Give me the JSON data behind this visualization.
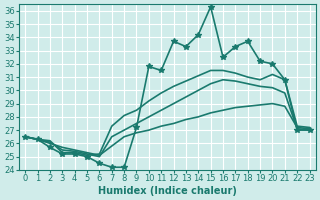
{
  "xlabel": "Humidex (Indice chaleur)",
  "ylabel": "",
  "xlim": [
    -0.5,
    23.5
  ],
  "ylim": [
    24,
    36.5
  ],
  "yticks": [
    24,
    25,
    26,
    27,
    28,
    29,
    30,
    31,
    32,
    33,
    34,
    35,
    36
  ],
  "xticks": [
    0,
    1,
    2,
    3,
    4,
    5,
    6,
    7,
    8,
    9,
    10,
    11,
    12,
    13,
    14,
    15,
    16,
    17,
    18,
    19,
    20,
    21,
    22,
    23
  ],
  "bg_color": "#d0ecea",
  "grid_color": "#ffffff",
  "line_color": "#1a7a6e",
  "lines": [
    {
      "x": [
        0,
        1,
        2,
        3,
        4,
        5,
        6,
        7,
        8,
        9,
        10,
        11,
        12,
        13,
        14,
        15,
        16,
        17,
        18,
        19,
        20,
        21,
        22,
        23
      ],
      "y": [
        26.5,
        26.3,
        25.7,
        25.2,
        25.2,
        25.0,
        24.5,
        24.2,
        24.2,
        27.2,
        31.8,
        31.5,
        33.7,
        33.3,
        34.2,
        36.3,
        32.5,
        33.3,
        33.7,
        32.2,
        32.0,
        30.8,
        27.0,
        27.0
      ],
      "marker": "*",
      "linewidth": 1.2
    },
    {
      "x": [
        0,
        1,
        2,
        3,
        4,
        5,
        6,
        7,
        8,
        9,
        10,
        11,
        12,
        13,
        14,
        15,
        16,
        17,
        18,
        19,
        20,
        21,
        22,
        23
      ],
      "y": [
        26.5,
        26.3,
        26.2,
        25.3,
        25.3,
        25.1,
        25.2,
        27.3,
        28.1,
        28.5,
        29.2,
        29.8,
        30.3,
        30.7,
        31.1,
        31.5,
        31.5,
        31.3,
        31.0,
        30.8,
        31.2,
        30.8,
        27.3,
        27.2
      ],
      "marker": null,
      "linewidth": 1.2
    },
    {
      "x": [
        0,
        1,
        2,
        3,
        4,
        5,
        6,
        7,
        8,
        9,
        10,
        11,
        12,
        13,
        14,
        15,
        16,
        17,
        18,
        19,
        20,
        21,
        22,
        23
      ],
      "y": [
        26.5,
        26.3,
        26.1,
        25.5,
        25.4,
        25.2,
        25.0,
        26.5,
        27.0,
        27.5,
        28.0,
        28.5,
        29.0,
        29.5,
        30.0,
        30.5,
        30.8,
        30.7,
        30.5,
        30.3,
        30.2,
        29.8,
        27.1,
        27.0
      ],
      "marker": null,
      "linewidth": 1.2
    },
    {
      "x": [
        0,
        1,
        2,
        3,
        4,
        5,
        6,
        7,
        8,
        9,
        10,
        11,
        12,
        13,
        14,
        15,
        16,
        17,
        18,
        19,
        20,
        21,
        22,
        23
      ],
      "y": [
        26.5,
        26.3,
        26.0,
        25.7,
        25.5,
        25.3,
        25.1,
        25.8,
        26.5,
        26.8,
        27.0,
        27.3,
        27.5,
        27.8,
        28.0,
        28.3,
        28.5,
        28.7,
        28.8,
        28.9,
        29.0,
        28.8,
        27.2,
        27.1
      ],
      "marker": null,
      "linewidth": 1.2
    }
  ]
}
